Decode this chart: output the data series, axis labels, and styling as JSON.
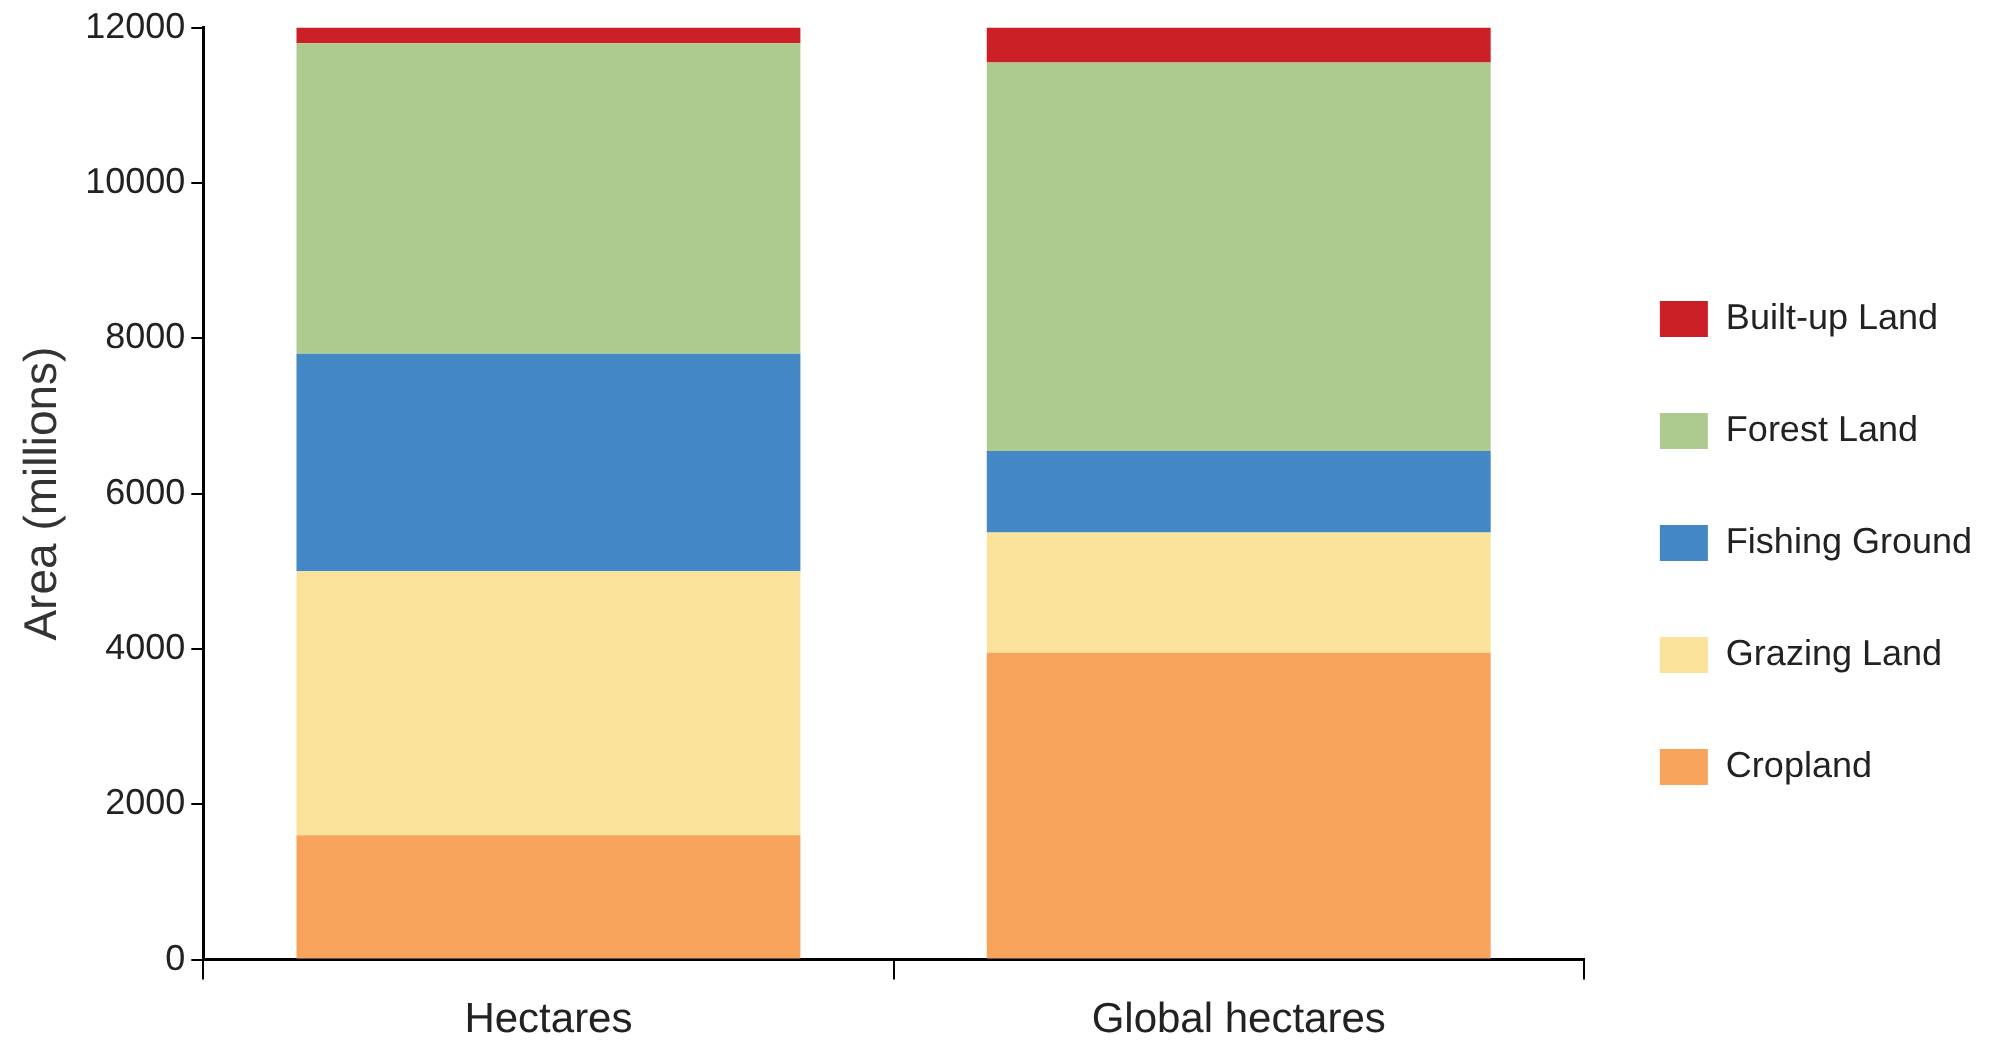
{
  "chart_data": {
    "type": "bar",
    "stacked": true,
    "ylabel": "Area (millions)",
    "categories": [
      "Hectares",
      "Global hectares"
    ],
    "series": [
      {
        "name": "Cropland",
        "color": "#f7a35c",
        "values": [
          1600,
          3950
        ]
      },
      {
        "name": "Grazing Land",
        "color": "#fbe29b",
        "values": [
          3400,
          1550
        ]
      },
      {
        "name": "Fishing Ground",
        "color": "#4387c4",
        "values": [
          2800,
          1050
        ]
      },
      {
        "name": "Forest Land",
        "color": "#aecb8f",
        "values": [
          4000,
          5000
        ]
      },
      {
        "name": "Built-up Land",
        "color": "#cc2027",
        "values": [
          200,
          450
        ]
      }
    ],
    "ylim": [
      0,
      12000
    ],
    "yticks": [
      0,
      2000,
      4000,
      6000,
      8000,
      10000,
      12000
    ],
    "grid": false,
    "legend": "right"
  }
}
